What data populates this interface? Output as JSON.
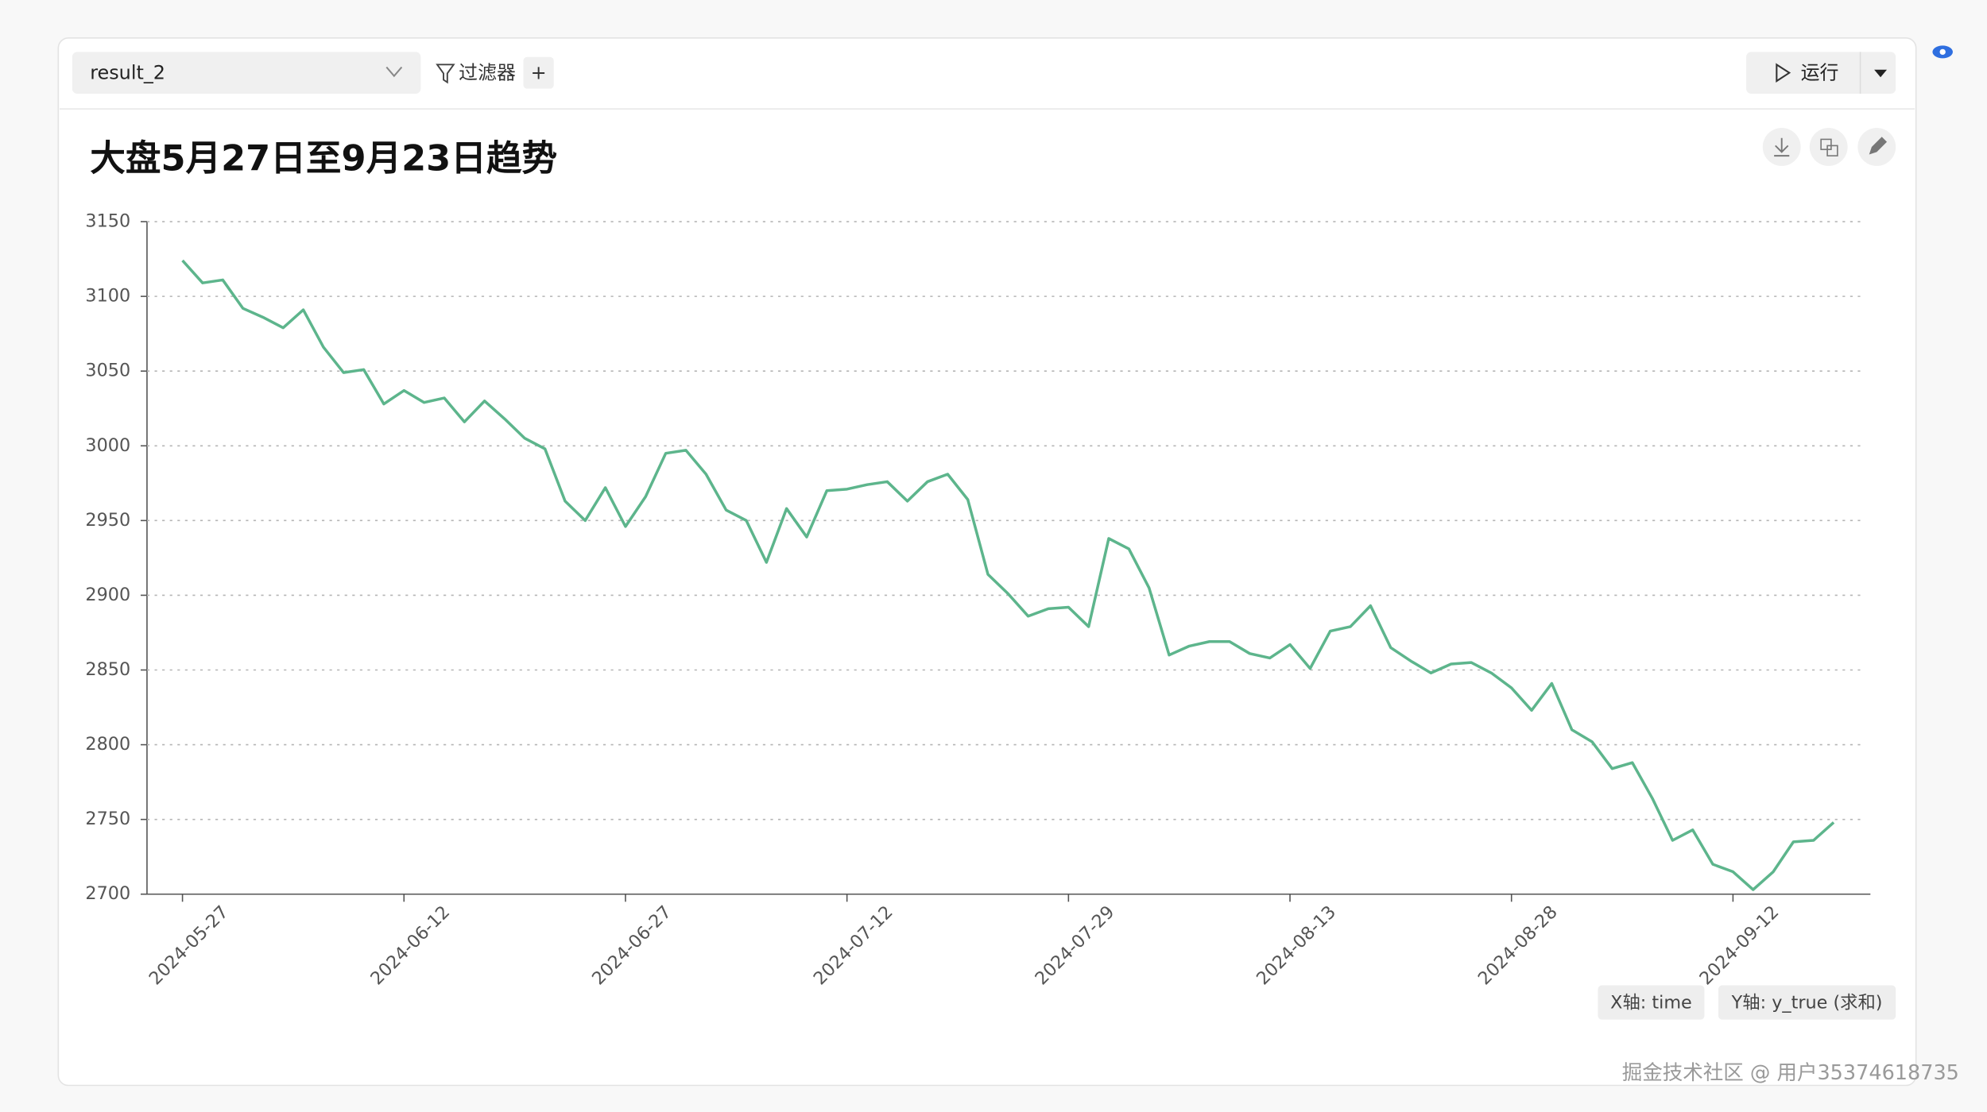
{
  "toolbar": {
    "dataset": "result_2",
    "filter": "过滤器",
    "add": "+",
    "run": "运行"
  },
  "chart_data": {
    "type": "line",
    "title": "大盘5月27日至9月23日趋势",
    "categories": [
      "2024-05-27",
      null,
      null,
      null,
      null,
      null,
      null,
      null,
      null,
      null,
      null,
      "2024-06-12",
      null,
      null,
      null,
      null,
      null,
      null,
      null,
      null,
      null,
      null,
      "2024-06-27",
      null,
      null,
      null,
      null,
      null,
      null,
      null,
      null,
      null,
      null,
      "2024-07-12",
      null,
      null,
      null,
      null,
      null,
      null,
      null,
      null,
      null,
      null,
      "2024-07-29",
      null,
      null,
      null,
      null,
      null,
      null,
      null,
      null,
      null,
      null,
      "2024-08-13",
      null,
      null,
      null,
      null,
      null,
      null,
      null,
      null,
      null,
      null,
      "2024-08-28",
      null,
      null,
      null,
      null,
      null,
      null,
      null,
      null,
      null,
      null,
      "2024-09-12",
      null,
      null,
      null,
      null,
      null
    ],
    "values": [
      3124,
      3109,
      3111,
      3092,
      3086,
      3079,
      3091,
      3066,
      3049,
      3051,
      3028,
      3037,
      3029,
      3032,
      3016,
      3030,
      3018,
      3005,
      2998,
      2963,
      2950,
      2972,
      2946,
      2966,
      2995,
      2997,
      2981,
      2957,
      2950,
      2922,
      2958,
      2939,
      2970,
      2971,
      2974,
      2976,
      2963,
      2976,
      2981,
      2964,
      2914,
      2901,
      2886,
      2891,
      2892,
      2879,
      2938,
      2931,
      2905,
      2860,
      2866,
      2869,
      2869,
      2861,
      2858,
      2867,
      2851,
      2876,
      2879,
      2893,
      2865,
      2856,
      2848,
      2854,
      2855,
      2848,
      2838,
      2823,
      2841,
      2810,
      2802,
      2784,
      2788,
      2764,
      2736,
      2743,
      2720,
      2715,
      2703,
      2715,
      2735,
      2736,
      2748
    ],
    "color": "#5db58c",
    "ylim": [
      2700,
      3150
    ],
    "yticks": [
      2700,
      2750,
      2800,
      2850,
      2900,
      2950,
      3000,
      3050,
      3100,
      3150
    ],
    "grid": true,
    "x_field": "X轴: time",
    "y_field": "Y轴: y_true (求和)"
  },
  "watermark": "掘金技术社区 @ 用户35374618735"
}
